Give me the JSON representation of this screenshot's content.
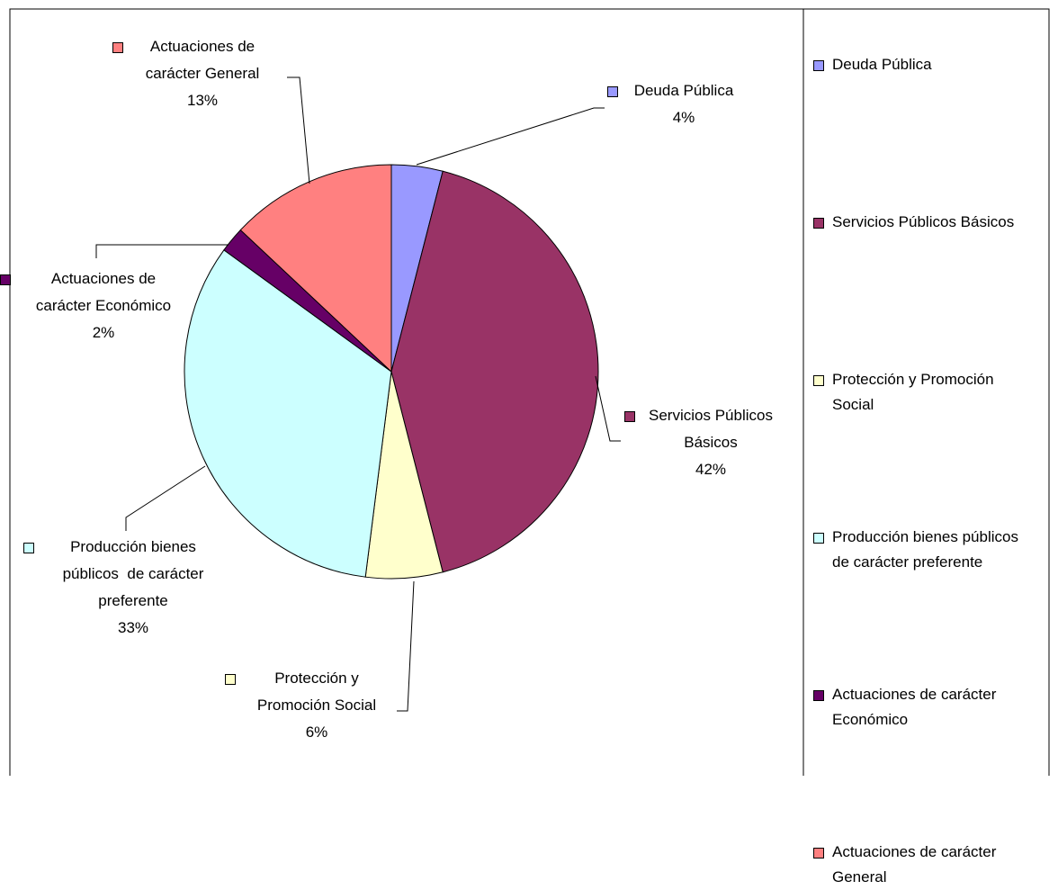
{
  "chart_data": {
    "type": "pie",
    "categories": [
      "Deuda Pública",
      "Servicios Públicos Básicos",
      "Protección y Promoción Social",
      "Producción bienes públicos  de carácter preferente",
      "Actuaciones de carácter Económico",
      "Actuaciones de carácter General"
    ],
    "values": [
      4,
      42,
      6,
      33,
      2,
      13
    ],
    "value_labels": [
      "4%",
      "42%",
      "6%",
      "33%",
      "2%",
      "13%"
    ],
    "colors": [
      "#9999ff",
      "#993366",
      "#ffffcc",
      "#ccffff",
      "#660066",
      "#ff8080"
    ],
    "legend": "right"
  }
}
